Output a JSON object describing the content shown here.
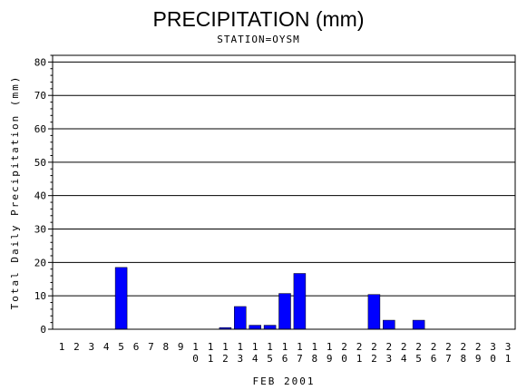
{
  "chart_data": {
    "type": "bar",
    "title": "PRECIPITATION (mm)",
    "subtitle": "STATION=OYSM",
    "xlabel": "FEB 2001",
    "ylabel": "Total Daily Precipitation (mm)",
    "ylim": [
      0,
      82
    ],
    "yticks": [
      0,
      10,
      20,
      30,
      40,
      50,
      60,
      70,
      80
    ],
    "grid": true,
    "bar_color": "#0000ff",
    "categories": [
      "1",
      "2",
      "3",
      "4",
      "5",
      "6",
      "7",
      "8",
      "9",
      "10",
      "11",
      "12",
      "13",
      "14",
      "15",
      "16",
      "17",
      "18",
      "19",
      "20",
      "21",
      "22",
      "23",
      "24",
      "25",
      "26",
      "27",
      "28",
      "29",
      "30",
      "31"
    ],
    "values": [
      0,
      0,
      0,
      0,
      18.5,
      0,
      0,
      0,
      0,
      0,
      0,
      0.5,
      6.8,
      1.2,
      1.2,
      10.7,
      16.7,
      0,
      0,
      0,
      0,
      10.4,
      2.7,
      0,
      2.7,
      0,
      0,
      0,
      0,
      0,
      0
    ]
  }
}
